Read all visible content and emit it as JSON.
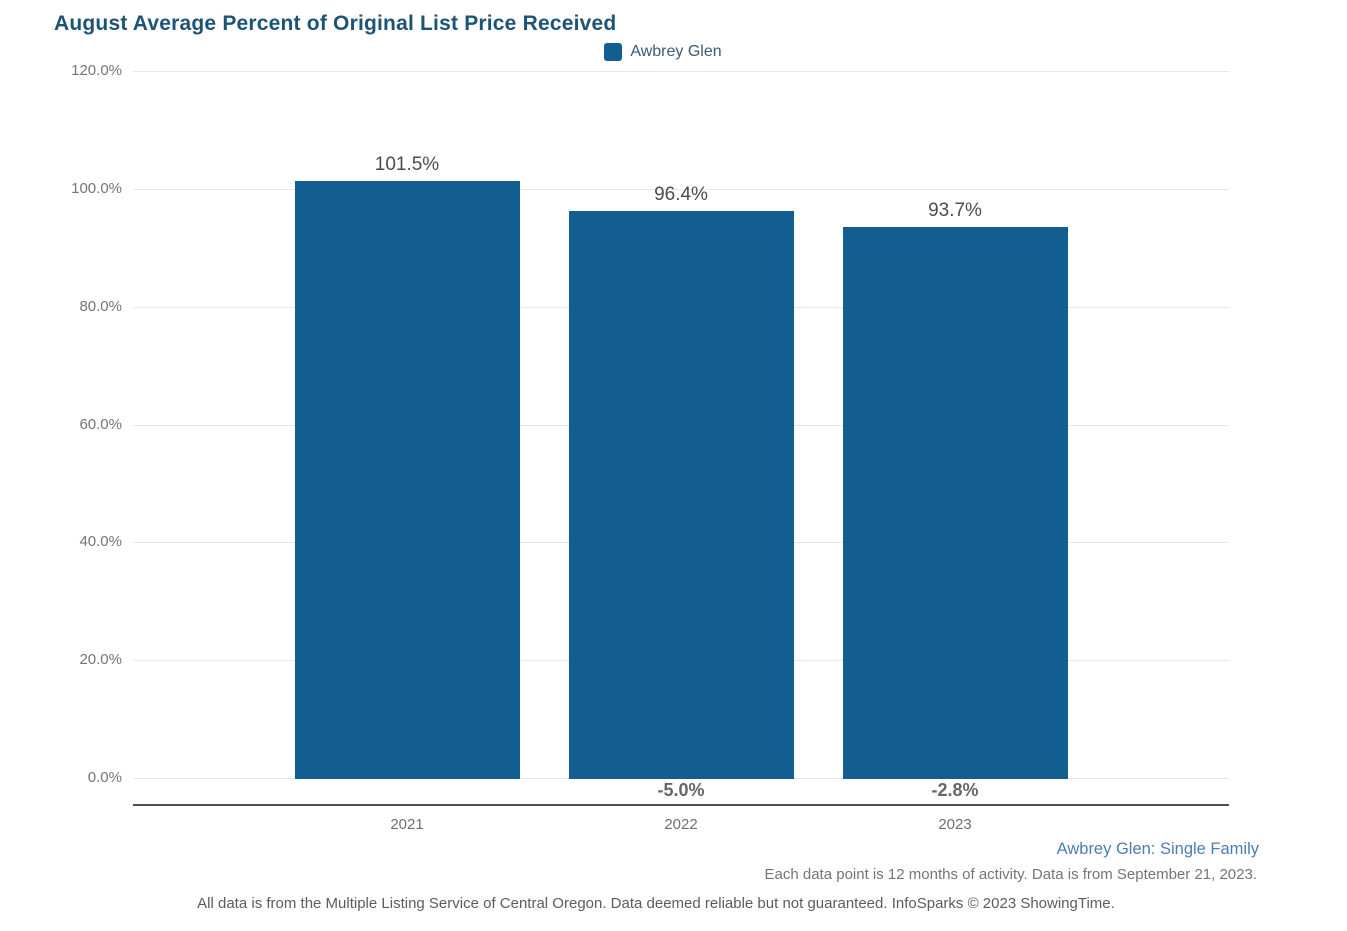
{
  "title": "August Average Percent of Original List Price Received",
  "legend": {
    "label": "Awbrey Glen",
    "swatch_color": "#125e90"
  },
  "chart_data": {
    "type": "bar",
    "title": "August Average Percent of Original List Price Received",
    "series_name": "Awbrey Glen",
    "categories": [
      "2021",
      "2022",
      "2023"
    ],
    "values": [
      101.5,
      96.4,
      93.7
    ],
    "bar_labels": [
      "101.5%",
      "96.4%",
      "93.7%"
    ],
    "change_labels": [
      "",
      "-5.0%",
      "-2.8%"
    ],
    "xlabel": "",
    "ylabel": "",
    "ylim": [
      0,
      120
    ],
    "yticks": [
      0,
      20,
      40,
      60,
      80,
      100,
      120
    ],
    "ytick_labels": [
      "0.0%",
      "20.0%",
      "40.0%",
      "60.0%",
      "80.0%",
      "100.0%",
      "120.0%"
    ],
    "grid": true,
    "legend_position": "top-center",
    "bar_color": "#125e90"
  },
  "footer": {
    "series_scope": "Awbrey Glen: Single Family",
    "note": "Each data point is 12 months of activity. Data is from September 21, 2023.",
    "disclaimer": "All data is from the Multiple Listing Service of Central Oregon. Data deemed reliable but not guaranteed. InfoSparks © 2023 ShowingTime."
  },
  "colors": {
    "title": "#1e5378",
    "bar": "#125e90",
    "legend_text": "#3d5a73",
    "value_label": "#4c4c4e",
    "change_label": "#666666",
    "axis_line": "#4f4f4f",
    "gridline": "#e7e7e7",
    "tick_label": "#757575",
    "footer_link_blue": "#4d7db2"
  }
}
